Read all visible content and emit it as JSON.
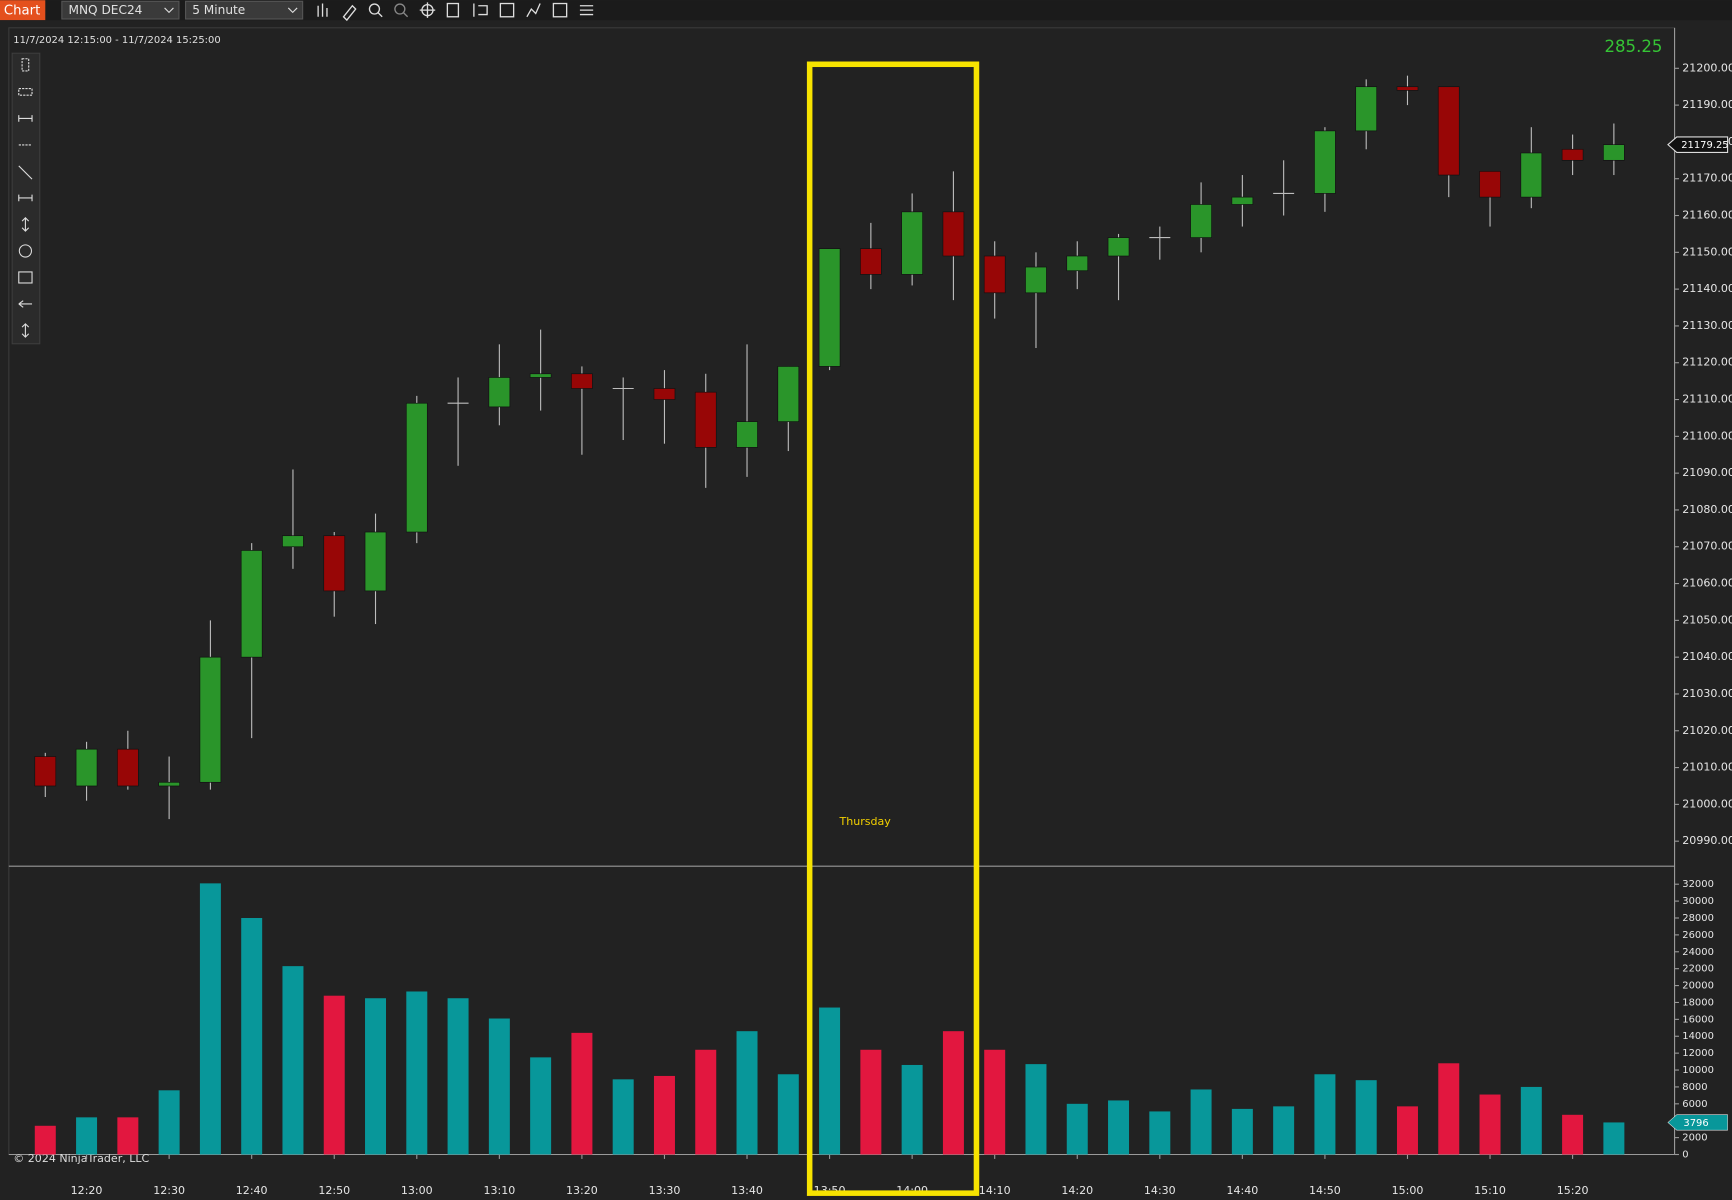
{
  "toolbar": {
    "button": "Chart",
    "instrument": "MNQ DEC24",
    "interval": "5 Minute"
  },
  "range_label": "11/7/2024 12:15:00 - 11/7/2024 15:25:00",
  "net_change": 285.25,
  "copyright": "© 2024 NinjaTrader, LLC",
  "chart_data": [
    {
      "type": "candlestick",
      "up_color": "#2a952a",
      "down_color": "#980606",
      "wick_color": "#bdbdbd",
      "annotations": [
        {
          "text": "Thursday"
        }
      ],
      "open": [
        21013,
        21005,
        21015,
        21005,
        21006,
        21040,
        21070,
        21073,
        21058,
        21074,
        21109,
        21108,
        21116,
        21117,
        21113,
        21113,
        21112,
        21097,
        21104,
        21119,
        21151,
        21144,
        21161,
        21149,
        21139,
        21145,
        21149,
        21154,
        21154,
        21163,
        21166,
        21166,
        21183,
        21195,
        21195,
        21172,
        21165,
        21178,
        21175
      ],
      "high": [
        21014,
        21017,
        21020,
        21013,
        21050,
        21071,
        21091,
        21074,
        21079,
        21111,
        21116,
        21125,
        21129,
        21119,
        21116,
        21118,
        21117,
        21125,
        21119,
        21151,
        21158,
        21166,
        21172,
        21153,
        21150,
        21153,
        21155,
        21157,
        21169,
        21171,
        21175,
        21184,
        21197,
        21198,
        21195,
        21172,
        21184,
        21182,
        21185
      ],
      "low": [
        21002,
        21001,
        21004,
        20996,
        21004,
        21018,
        21064,
        21051,
        21049,
        21071,
        21092,
        21103,
        21107,
        21095,
        21099,
        21098,
        21086,
        21089,
        21096,
        21118,
        21140,
        21141,
        21137,
        21132,
        21124,
        21140,
        21137,
        21148,
        21150,
        21157,
        21160,
        21161,
        21178,
        21190,
        21165,
        21157,
        21162,
        21171,
        21171
      ],
      "close": [
        21005,
        21015,
        21005,
        21006,
        21040,
        21069,
        21073,
        21058,
        21074,
        21109,
        21109,
        21116,
        21117,
        21113,
        21113,
        21110,
        21097,
        21104,
        21119,
        21151,
        21144,
        21161,
        21149,
        21139,
        21146,
        21149,
        21154,
        21154,
        21163,
        21165,
        21166,
        21183,
        21195,
        21194,
        21171,
        21165,
        21177,
        21175,
        21179.25
      ],
      "ylim": [
        20983.5,
        21211
      ],
      "yticks": [
        {
          "value": 20990,
          "label": "20990.00"
        },
        {
          "value": 21000,
          "label": "21000.00"
        },
        {
          "value": 21010,
          "label": "21010.00"
        },
        {
          "value": 21020,
          "label": "21020.00"
        },
        {
          "value": 21030,
          "label": "21030.00"
        },
        {
          "value": 21040,
          "label": "21040.00"
        },
        {
          "value": 21050,
          "label": "21050.00"
        },
        {
          "value": 21060,
          "label": "21060.00"
        },
        {
          "value": 21070,
          "label": "21070.00"
        },
        {
          "value": 21080,
          "label": "21080.00"
        },
        {
          "value": 21090,
          "label": "21090.00"
        },
        {
          "value": 21100,
          "label": "21100.00"
        },
        {
          "value": 21110,
          "label": "21110.00"
        },
        {
          "value": 21120,
          "label": "21120.00"
        },
        {
          "value": 21130,
          "label": "21130.00"
        },
        {
          "value": 21140,
          "label": "21140.00"
        },
        {
          "value": 21150,
          "label": "21150.00"
        },
        {
          "value": 21160,
          "label": "21160.00"
        },
        {
          "value": 21170,
          "label": "21170.00"
        },
        {
          "value": 21180,
          "label": "21180.00"
        },
        {
          "value": 21190,
          "label": "21190.00"
        },
        {
          "value": 21200,
          "label": "21200.00"
        }
      ]
    },
    {
      "type": "bar",
      "up_color": "#08979a",
      "down_color": "#e2173f",
      "categories": [
        null,
        "12:20",
        null,
        "12:30",
        null,
        "12:40",
        null,
        "12:50",
        null,
        "13:00",
        null,
        "13:10",
        null,
        "13:20",
        null,
        "13:30",
        null,
        "13:40",
        null,
        "13:50",
        null,
        "14:00",
        null,
        "14:10",
        null,
        "14:20",
        null,
        "14:30",
        null,
        "14:40",
        null,
        "14:50",
        null,
        "15:00",
        null,
        "15:10",
        null,
        "15:20",
        null
      ],
      "values": [
        3400,
        4400,
        4400,
        7600,
        32100,
        28000,
        22300,
        18800,
        18500,
        19300,
        18500,
        16100,
        11500,
        14400,
        8900,
        9300,
        12400,
        14600,
        9500,
        17400,
        12400,
        10600,
        14600,
        12400,
        10700,
        6000,
        6400,
        5100,
        7700,
        5400,
        5700,
        9500,
        8800,
        5700,
        10800,
        7100,
        8000,
        4700,
        3796
      ],
      "ylim": [
        0,
        34000
      ],
      "yticks": [
        0,
        2000,
        4000,
        6000,
        8000,
        10000,
        12000,
        14000,
        16000,
        18000,
        20000,
        22000,
        24000,
        26000,
        28000,
        30000,
        32000
      ]
    }
  ]
}
